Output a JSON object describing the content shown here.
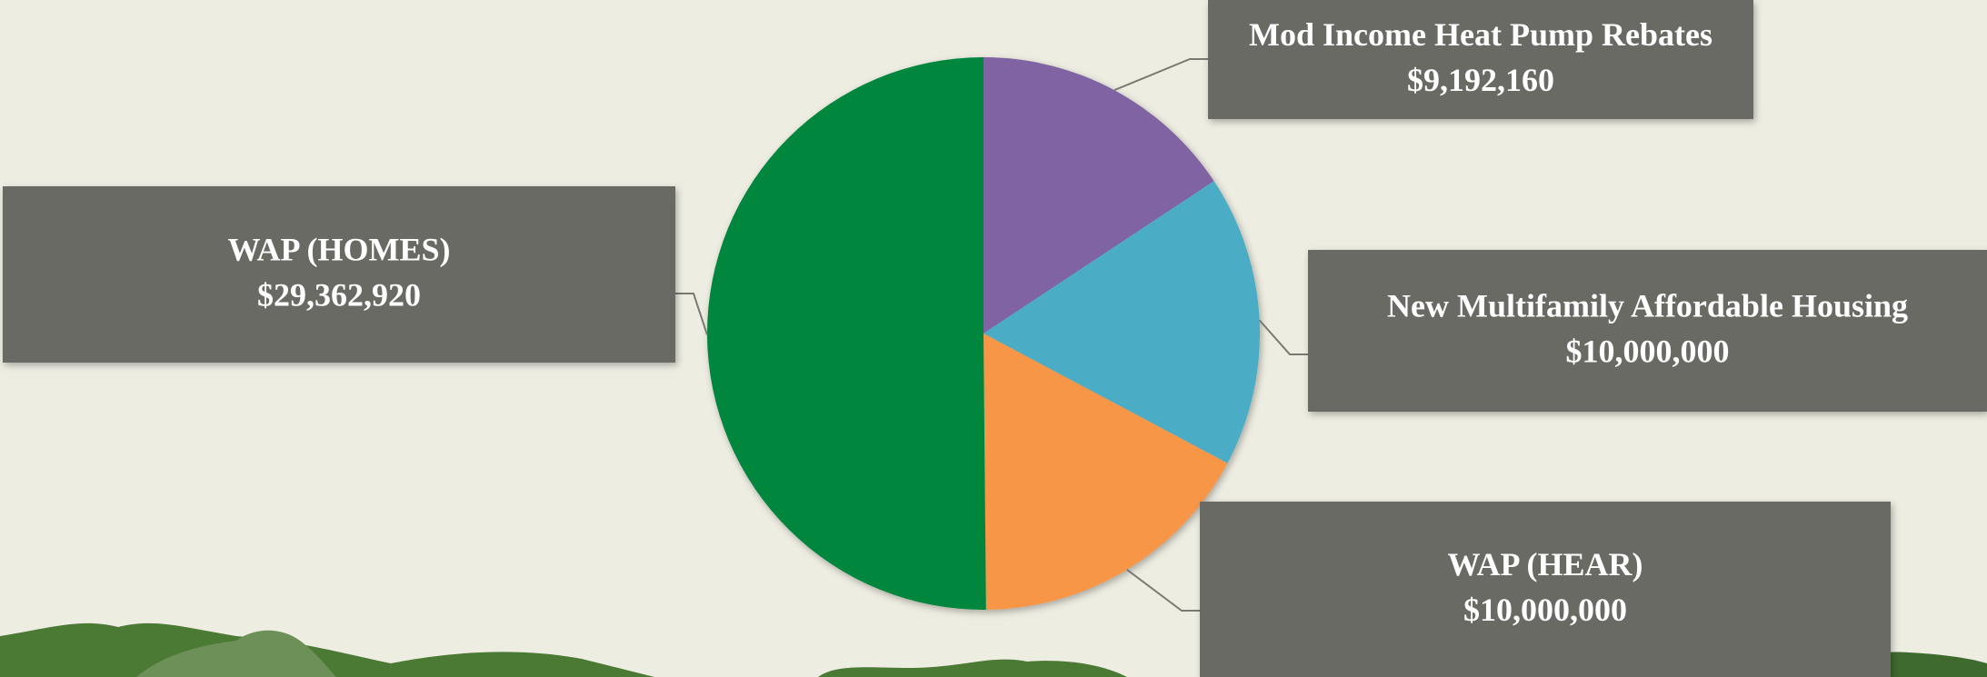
{
  "chart_data": {
    "type": "pie",
    "categories": [
      "Mod Income Heat Pump Rebates",
      "New Multifamily Affordable Housing",
      "WAP (HEAR)",
      "WAP (HOMES)"
    ],
    "values": [
      9192160,
      10000000,
      10000000,
      29362920
    ],
    "value_labels": [
      "$9,192,160",
      "$10,000,000",
      "$10,000,000",
      "$29,362,920"
    ],
    "colors": [
      "#8064a2",
      "#4bacc6",
      "#f79646",
      "#00873e"
    ]
  }
}
